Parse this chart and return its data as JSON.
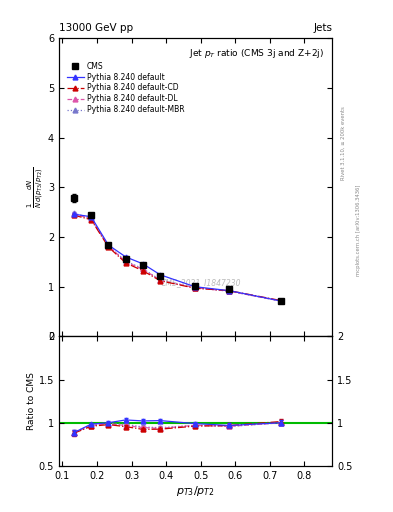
{
  "title_top": "13000 GeV pp",
  "title_right": "Jets",
  "plot_title": "Jet $p_T$ ratio (CMS 3j and Z+2j)",
  "xlabel": "$p_{T3}/p_{T2}$",
  "ylabel_main": "$\\frac{1}{N}\\frac{dN}{d(p_{T3}/p_{T2})}$",
  "ylabel_ratio": "Ratio to CMS",
  "watermark": "CMS_2021_I1847230",
  "right_label_top": "Rivet 3.1.10, ≥ 200k events",
  "right_label_bot": "mcplots.cern.ch [arXiv:1306.3436]",
  "cms_x": [
    0.133,
    0.183,
    0.233,
    0.283,
    0.333,
    0.383,
    0.483,
    0.583,
    0.733
  ],
  "cms_y": [
    2.78,
    2.45,
    1.84,
    1.55,
    1.43,
    1.21,
    1.01,
    0.95,
    0.71
  ],
  "cms_yerr": [
    0.08,
    0.04,
    0.03,
    0.03,
    0.03,
    0.02,
    0.02,
    0.02,
    0.02
  ],
  "pythia_x": [
    0.133,
    0.183,
    0.233,
    0.283,
    0.333,
    0.383,
    0.483,
    0.583,
    0.733
  ],
  "pythia_default_y": [
    2.46,
    2.41,
    1.84,
    1.6,
    1.46,
    1.24,
    1.0,
    0.92,
    0.71
  ],
  "pythia_default_yerr": [
    0.03,
    0.02,
    0.02,
    0.02,
    0.01,
    0.01,
    0.01,
    0.01,
    0.01
  ],
  "pythia_cd_y": [
    2.44,
    2.35,
    1.8,
    1.48,
    1.32,
    1.12,
    0.97,
    0.92,
    0.72
  ],
  "pythia_cd_yerr": [
    0.03,
    0.02,
    0.02,
    0.02,
    0.01,
    0.01,
    0.01,
    0.01,
    0.01
  ],
  "pythia_dl_y": [
    2.46,
    2.37,
    1.82,
    1.5,
    1.35,
    1.13,
    0.98,
    0.91,
    0.71
  ],
  "pythia_dl_yerr": [
    0.03,
    0.02,
    0.02,
    0.02,
    0.01,
    0.01,
    0.01,
    0.01,
    0.01
  ],
  "pythia_mbr_y": [
    2.48,
    2.38,
    1.82,
    1.52,
    1.36,
    1.14,
    0.98,
    0.91,
    0.71
  ],
  "pythia_mbr_yerr": [
    0.03,
    0.02,
    0.02,
    0.02,
    0.01,
    0.01,
    0.01,
    0.01,
    0.01
  ],
  "color_default": "#3333ff",
  "color_cd": "#cc0000",
  "color_dl": "#dd55aa",
  "color_mbr": "#7777cc",
  "color_cms": "#000000",
  "color_green": "#00bb00",
  "ylim_main": [
    0,
    6
  ],
  "ylim_ratio": [
    0.5,
    2.0
  ],
  "xlim": [
    0.09,
    0.88
  ]
}
